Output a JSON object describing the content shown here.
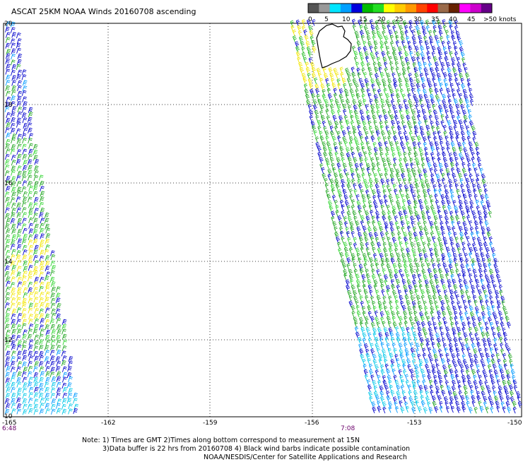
{
  "title": "ASCAT 25KM NOAA Winds 20160708 ascending",
  "legend": {
    "labels": [
      "0",
      "5",
      "10",
      "15",
      "20",
      "25",
      "30",
      "35",
      "40",
      "45",
      ">50 knots"
    ],
    "colors": [
      "#555555",
      "#999999",
      "#00e5ff",
      "#00a0ff",
      "#0000dd",
      "#00bb00",
      "#22dd22",
      "#ffff00",
      "#ffcc00",
      "#ff9900",
      "#ff4400",
      "#ff0000",
      "#9a6a4a",
      "#662200",
      "#ff00ff",
      "#cc00cc",
      "#660088"
    ]
  },
  "lat_labels": [
    "20",
    "18",
    "16",
    "14",
    "12",
    "10"
  ],
  "lon_labels": [
    "-165",
    "-162",
    "-159",
    "-156",
    "-153",
    "-150"
  ],
  "time_labels": [
    "6:48",
    "7:08"
  ],
  "notes": [
    "Note: 1) Times are GMT 2)Times along bottom correspond to measurement at 15N",
    "3)Data buffer is 22 hrs from 20160708 4) Black wind barbs indicate possible contamination",
    "NOAA/NESDIS/Center for Satellite Applications and Research"
  ]
}
